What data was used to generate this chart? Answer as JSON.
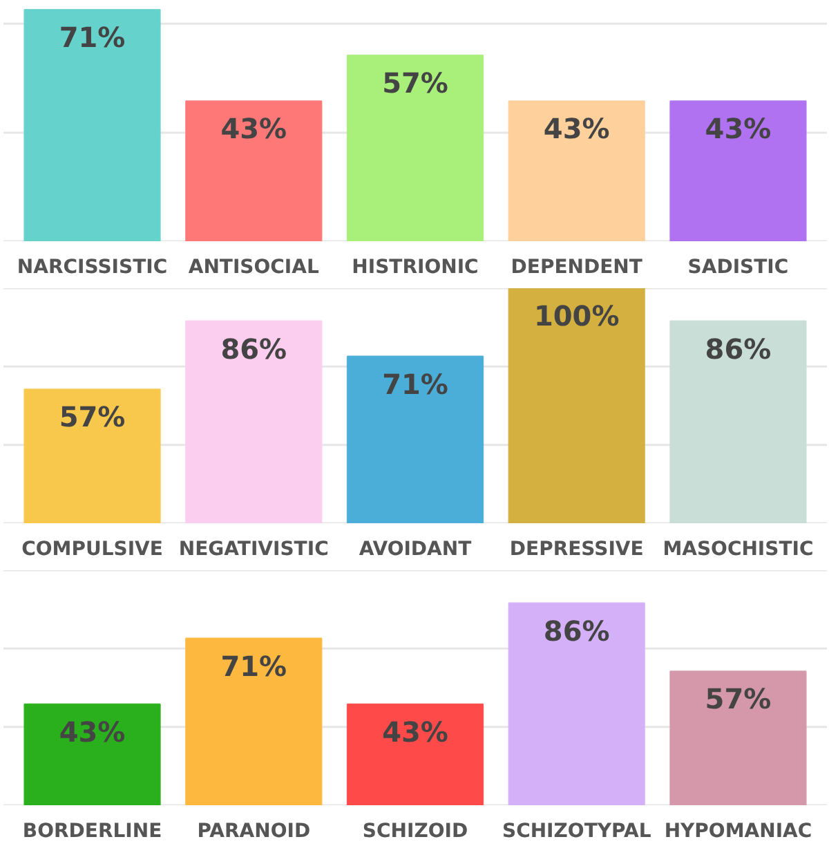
{
  "chart_data": [
    {
      "type": "bar",
      "categories": [
        "NARCISSISTIC",
        "ANTISOCIAL",
        "HISTRIONIC",
        "DEPENDENT",
        "SADISTIC"
      ],
      "values": [
        71,
        43,
        57,
        43,
        43
      ],
      "value_labels": [
        "71%",
        "43%",
        "57%",
        "43%",
        "43%"
      ],
      "colors": [
        "#66d2cc",
        "#ff7878",
        "#a8f07a",
        "#fdd09c",
        "#b072f0"
      ],
      "tick_labels": "x",
      "ref_lines": [
        {
          "axis": "y",
          "value": 0,
          "color": "#e6e6e6"
        },
        {
          "axis": "y",
          "value": 33.3,
          "color": "#e6e6e6"
        },
        {
          "axis": "y",
          "value": 66.7,
          "color": "#e6e6e6"
        }
      ]
    },
    {
      "type": "bar",
      "categories": [
        "COMPULSIVE",
        "NEGATIVISTIC",
        "AVOIDANT",
        "DEPRESSIVE",
        "MASOCHISTIC"
      ],
      "values": [
        57,
        86,
        71,
        100,
        86
      ],
      "value_labels": [
        "57%",
        "86%",
        "71%",
        "100%",
        "86%"
      ],
      "colors": [
        "#f8c84c",
        "#fbcdee",
        "#4aaed8",
        "#d4b040",
        "#c8ded6"
      ],
      "ylim": [
        0,
        100
      ],
      "tick_labels": "x",
      "ref_lines": [
        {
          "axis": "y",
          "value": 0,
          "color": "#e6e6e6"
        },
        {
          "axis": "y",
          "value": 33.3,
          "color": "#e6e6e6"
        },
        {
          "axis": "y",
          "value": 66.7,
          "color": "#e6e6e6"
        },
        {
          "axis": "y",
          "value": 100,
          "color": "#e6e6e6"
        }
      ]
    },
    {
      "type": "bar",
      "categories": [
        "BORDERLINE",
        "PARANOID",
        "SCHIZOID",
        "SCHIZOTYPAL",
        "HYPOMANIAC"
      ],
      "values": [
        43,
        71,
        43,
        86,
        57
      ],
      "value_labels": [
        "43%",
        "71%",
        "43%",
        "86%",
        "57%"
      ],
      "colors": [
        "#2ab01c",
        "#fdb840",
        "#ff4a4a",
        "#d4b0f8",
        "#d498aa"
      ],
      "ylim": [
        0,
        100
      ],
      "tick_labels": "x",
      "ref_lines": [
        {
          "axis": "y",
          "value": 0,
          "color": "#e6e6e6"
        },
        {
          "axis": "y",
          "value": 33.3,
          "color": "#e6e6e6"
        },
        {
          "axis": "y",
          "value": 66.7,
          "color": "#e6e6e6"
        },
        {
          "axis": "y",
          "value": 100,
          "color": "#e6e6e6"
        }
      ]
    }
  ]
}
